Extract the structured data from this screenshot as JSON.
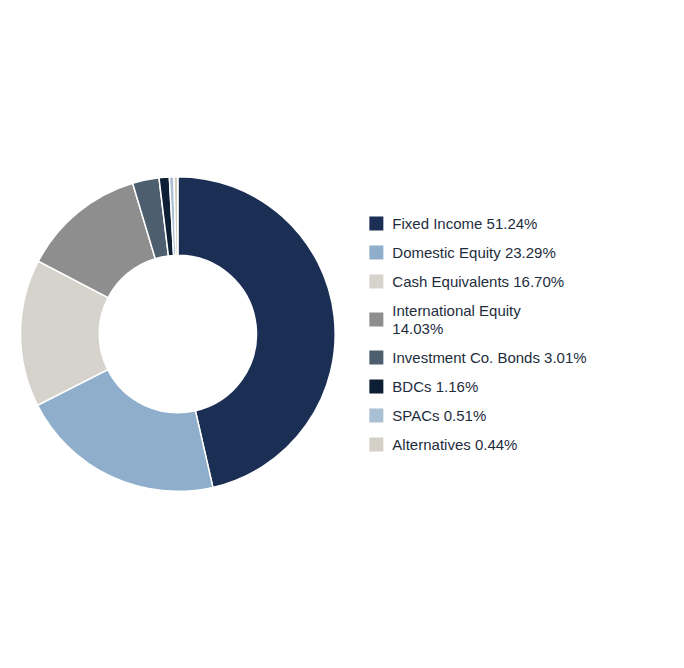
{
  "chart_data": {
    "type": "donut",
    "categories": [
      "Fixed Income 51.24%",
      "Domestic Equity 23.29%",
      "Cash Equivalents 16.70%",
      "International Equity\n14.03%",
      "Investment Co. Bonds 3.01%",
      "BDCs 1.16%",
      "SPACs 0.51%",
      "Alternatives 0.44%"
    ],
    "values": [
      51.24,
      23.29,
      16.7,
      14.03,
      3.01,
      1.16,
      0.51,
      0.44
    ],
    "colors": [
      "#1b2f55",
      "#8faecb",
      "#d6d3cc",
      "#8e8e8e",
      "#4d5f6e",
      "#0d1f35",
      "#a8bfd4",
      "#d4d0c8"
    ],
    "legend": "right"
  }
}
